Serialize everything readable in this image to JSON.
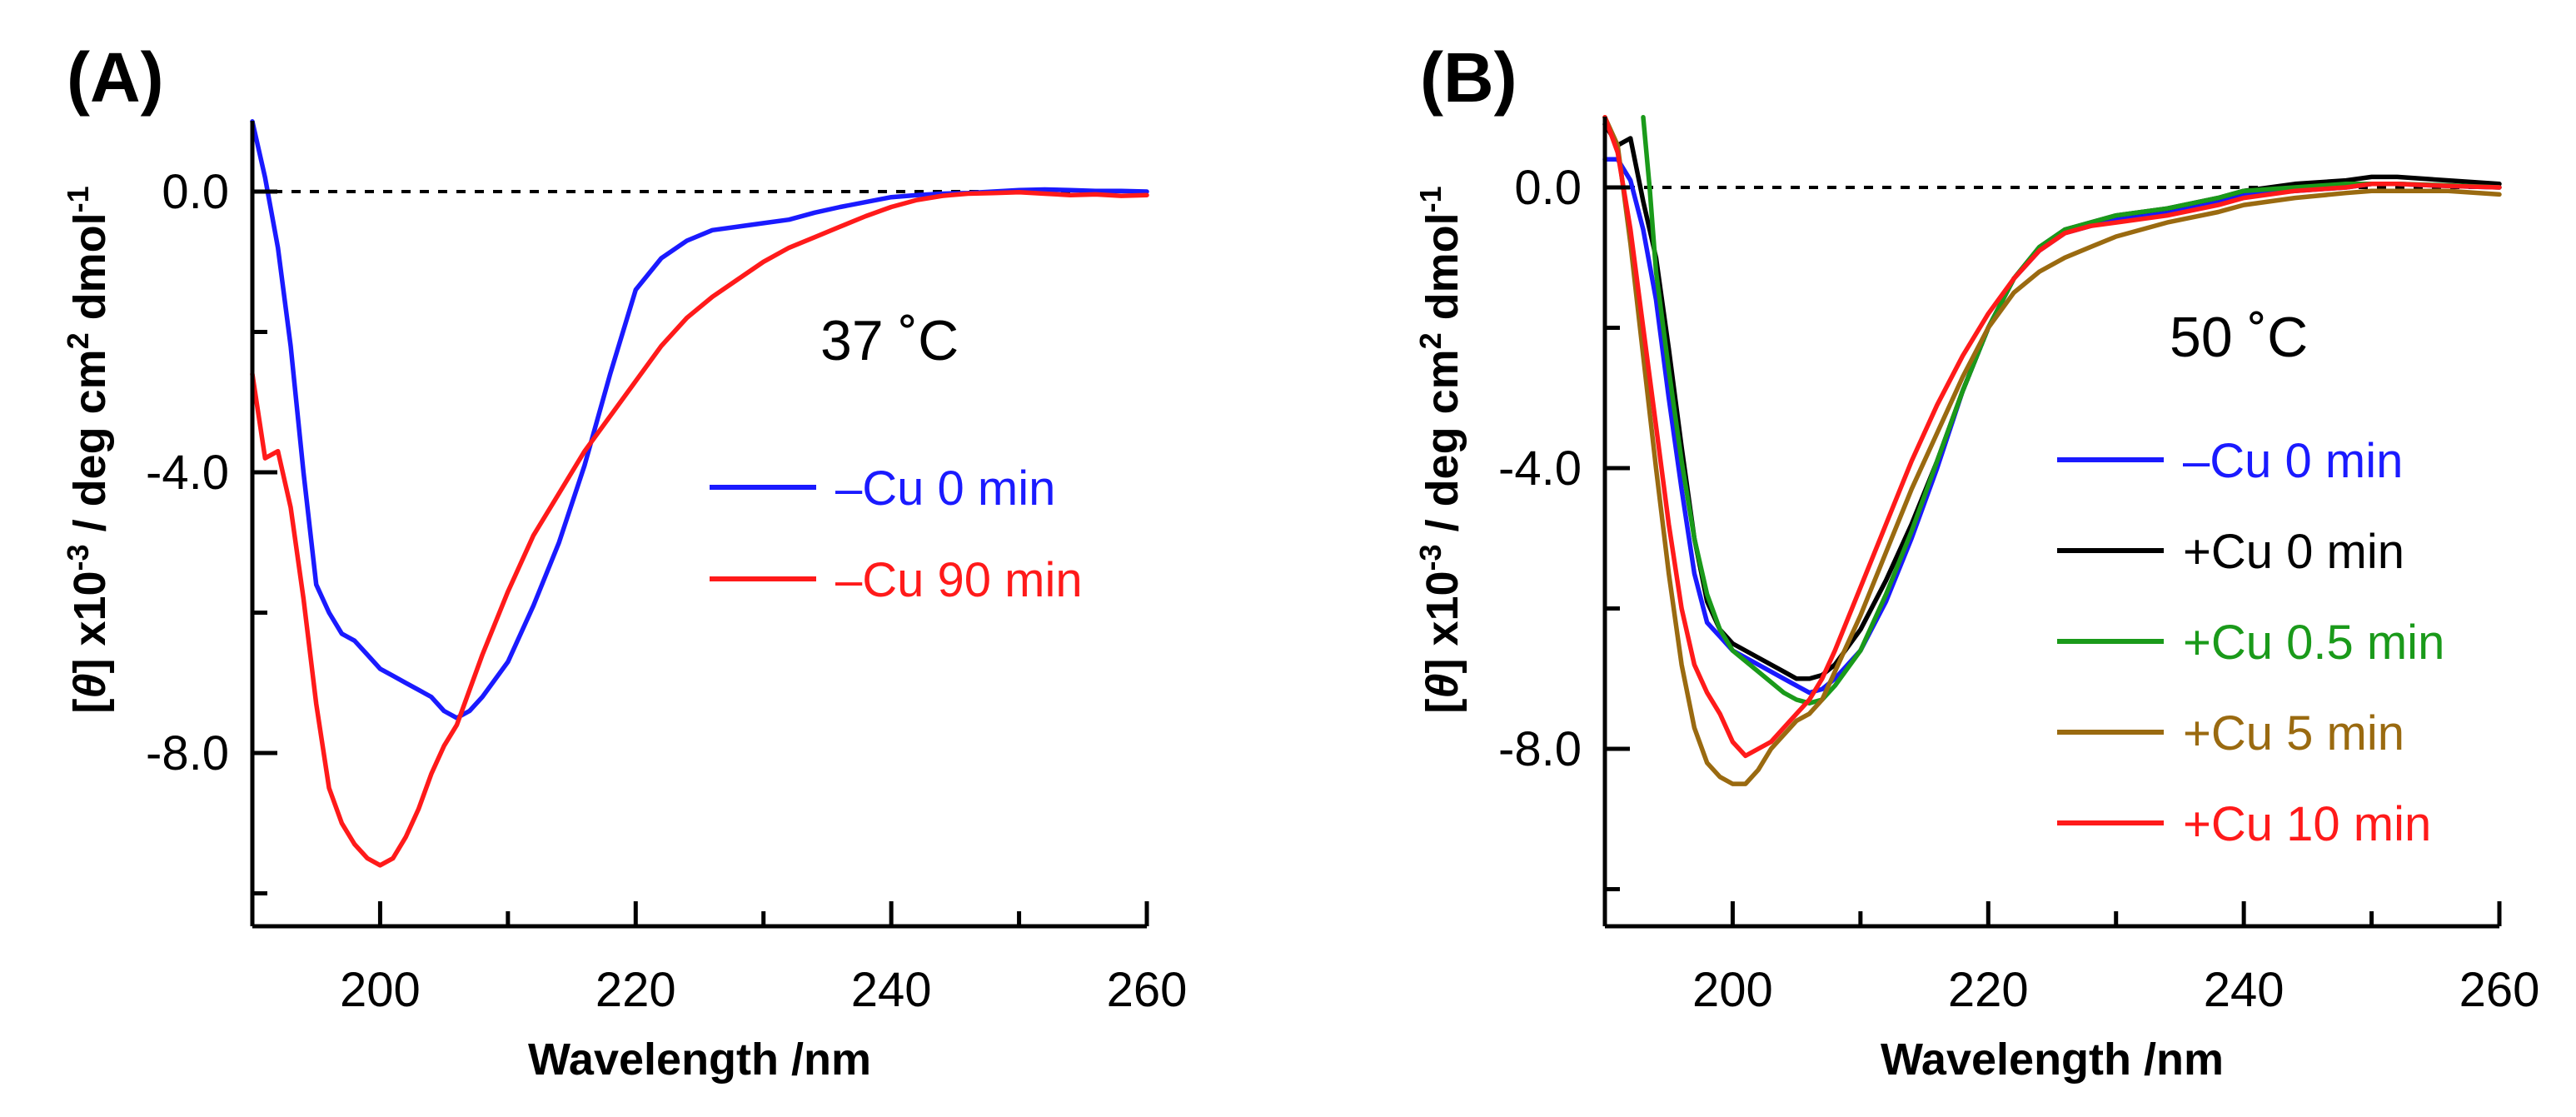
{
  "chart_data": [
    {
      "panel_label": "(A)",
      "type": "line",
      "annotation": "37 ˚C",
      "xlabel": "Wavelength /nm",
      "ylabel_parts": [
        "[",
        "θ",
        "] x10",
        "-3",
        " / deg cm",
        "2",
        " dmol",
        "-1"
      ],
      "xlim": [
        190,
        260
      ],
      "ylim": [
        -10.6,
        1.0
      ],
      "xticks": [
        200,
        220,
        240,
        260
      ],
      "xtick_labels": [
        "200",
        "220",
        "240",
        "260"
      ],
      "yticks": [
        0.0,
        -4.0,
        -8.0
      ],
      "ytick_labels": [
        "0.0",
        "-4.0",
        "-8.0"
      ],
      "reference_line_y": 0,
      "series": [
        {
          "name": "–Cu 0 min",
          "color": "#1a1aff",
          "x": [
            190,
            191,
            192,
            193,
            194,
            195,
            196,
            197,
            198,
            199,
            200,
            201,
            202,
            203,
            204,
            205,
            206,
            207,
            208,
            210,
            212,
            214,
            216,
            218,
            220,
            222,
            224,
            226,
            228,
            230,
            232,
            234,
            236,
            238,
            240,
            242,
            244,
            246,
            248,
            250,
            252,
            254,
            256,
            258,
            260
          ],
          "y": [
            1.0,
            0.2,
            -0.8,
            -2.2,
            -4.0,
            -5.6,
            -6.0,
            -6.3,
            -6.4,
            -6.6,
            -6.8,
            -6.9,
            -7.0,
            -7.1,
            -7.2,
            -7.4,
            -7.5,
            -7.4,
            -7.2,
            -6.7,
            -5.9,
            -5.0,
            -3.9,
            -2.6,
            -1.4,
            -0.95,
            -0.7,
            -0.55,
            -0.5,
            -0.45,
            -0.4,
            -0.3,
            -0.22,
            -0.15,
            -0.08,
            -0.05,
            -0.03,
            -0.02,
            0.0,
            0.02,
            0.03,
            0.02,
            0.01,
            0.01,
            0.0
          ]
        },
        {
          "name": "–Cu 90 min",
          "color": "#ff1a1a",
          "x": [
            190,
            191,
            192,
            193,
            194,
            195,
            196,
            197,
            198,
            199,
            200,
            201,
            202,
            203,
            204,
            205,
            206,
            208,
            210,
            212,
            214,
            216,
            218,
            220,
            222,
            224,
            226,
            228,
            230,
            232,
            234,
            236,
            238,
            240,
            242,
            244,
            246,
            248,
            250,
            252,
            254,
            256,
            258,
            260
          ],
          "y": [
            -2.6,
            -3.8,
            -3.7,
            -4.5,
            -5.8,
            -7.3,
            -8.5,
            -9.0,
            -9.3,
            -9.5,
            -9.6,
            -9.5,
            -9.2,
            -8.8,
            -8.3,
            -7.9,
            -7.6,
            -6.6,
            -5.7,
            -4.9,
            -4.3,
            -3.7,
            -3.2,
            -2.7,
            -2.2,
            -1.8,
            -1.5,
            -1.25,
            -1.0,
            -0.8,
            -0.65,
            -0.5,
            -0.35,
            -0.22,
            -0.12,
            -0.06,
            -0.03,
            -0.02,
            -0.01,
            -0.03,
            -0.05,
            -0.04,
            -0.06,
            -0.05
          ]
        }
      ]
    },
    {
      "panel_label": "(B)",
      "type": "line",
      "annotation": "50 ˚C",
      "xlabel": "Wavelength /nm",
      "ylabel_parts": [
        "[",
        "θ",
        "] x10",
        "-3",
        " / deg cm",
        "2",
        " dmol",
        "-1"
      ],
      "xlim": [
        190,
        260
      ],
      "ylim": [
        -10.6,
        1.0
      ],
      "xticks": [
        200,
        220,
        240,
        260
      ],
      "xtick_labels": [
        "200",
        "220",
        "240",
        "260"
      ],
      "yticks": [
        0.0,
        -4.0,
        -8.0
      ],
      "ytick_labels": [
        "0.0",
        "-4.0",
        "-8.0"
      ],
      "reference_line_y": 0,
      "series": [
        {
          "name": "–Cu 0 min",
          "color": "#1a1aff",
          "x": [
            190,
            191,
            192,
            193,
            194,
            195,
            196,
            197,
            198,
            199,
            200,
            202,
            204,
            205,
            206,
            207,
            208,
            210,
            212,
            214,
            216,
            218,
            220,
            222,
            224,
            226,
            228,
            230,
            234,
            238,
            240,
            244,
            248,
            250,
            252,
            256,
            260
          ],
          "y": [
            0.4,
            0.4,
            0.1,
            -0.6,
            -1.6,
            -3.0,
            -4.3,
            -5.5,
            -6.2,
            -6.4,
            -6.6,
            -6.8,
            -7.0,
            -7.1,
            -7.2,
            -7.15,
            -7.0,
            -6.6,
            -5.9,
            -5.0,
            -4.0,
            -2.9,
            -2.0,
            -1.3,
            -0.9,
            -0.65,
            -0.55,
            -0.45,
            -0.35,
            -0.2,
            -0.1,
            -0.05,
            0.0,
            0.05,
            0.05,
            0.02,
            0.0
          ]
        },
        {
          "name": "+Cu 0 min",
          "color": "#000000",
          "x": [
            190,
            191,
            192,
            193,
            194,
            195,
            196,
            197,
            198,
            199,
            200,
            202,
            204,
            205,
            206,
            207,
            208,
            210,
            212,
            214,
            216,
            218,
            220,
            222,
            224,
            226,
            228,
            230,
            234,
            238,
            240,
            244,
            248,
            250,
            252,
            256,
            260
          ],
          "y": [
            0.9,
            0.6,
            0.7,
            -0.2,
            -1.0,
            -2.3,
            -3.7,
            -5.0,
            -5.9,
            -6.3,
            -6.5,
            -6.7,
            -6.9,
            -7.0,
            -7.0,
            -6.95,
            -6.8,
            -6.3,
            -5.6,
            -4.8,
            -3.9,
            -2.9,
            -2.0,
            -1.3,
            -0.85,
            -0.6,
            -0.5,
            -0.4,
            -0.3,
            -0.15,
            -0.05,
            0.05,
            0.1,
            0.15,
            0.15,
            0.1,
            0.05
          ]
        },
        {
          "name": "+Cu 0.5 min",
          "color": "#1a9a1a",
          "x": [
            193,
            193.5,
            194,
            195,
            196,
            197,
            198,
            199,
            200,
            202,
            204,
            205,
            206,
            207,
            208,
            210,
            212,
            214,
            216,
            218,
            220,
            222,
            224,
            226,
            228,
            230,
            234,
            238,
            240,
            244,
            248,
            250,
            252,
            256,
            260
          ],
          "y": [
            1.0,
            0.0,
            -1.2,
            -2.6,
            -3.9,
            -5.0,
            -5.8,
            -6.3,
            -6.6,
            -6.9,
            -7.2,
            -7.3,
            -7.35,
            -7.3,
            -7.1,
            -6.6,
            -5.8,
            -4.9,
            -3.9,
            -2.9,
            -2.0,
            -1.3,
            -0.85,
            -0.6,
            -0.5,
            -0.4,
            -0.3,
            -0.15,
            -0.05,
            0.0,
            0.05,
            0.05,
            0.05,
            0.03,
            0.0
          ]
        },
        {
          "name": "+Cu 5 min",
          "color": "#9a6a10",
          "x": [
            190,
            191,
            192,
            193,
            194,
            195,
            196,
            197,
            198,
            199,
            200,
            201,
            202,
            203,
            204,
            205,
            206,
            207,
            208,
            210,
            212,
            214,
            216,
            218,
            220,
            222,
            224,
            226,
            228,
            230,
            234,
            238,
            240,
            244,
            248,
            250,
            252,
            256,
            260
          ],
          "y": [
            1.0,
            0.6,
            -0.8,
            -2.4,
            -4.0,
            -5.5,
            -6.8,
            -7.7,
            -8.2,
            -8.4,
            -8.5,
            -8.5,
            -8.3,
            -8.0,
            -7.8,
            -7.6,
            -7.5,
            -7.3,
            -6.9,
            -6.1,
            -5.2,
            -4.3,
            -3.5,
            -2.7,
            -2.0,
            -1.5,
            -1.2,
            -1.0,
            -0.85,
            -0.7,
            -0.5,
            -0.35,
            -0.25,
            -0.15,
            -0.08,
            -0.05,
            -0.05,
            -0.05,
            -0.1
          ]
        },
        {
          "name": "+Cu 10 min",
          "color": "#ff1a1a",
          "x": [
            190,
            191,
            192,
            193,
            194,
            195,
            196,
            197,
            198,
            199,
            200,
            201,
            202,
            203,
            204,
            205,
            206,
            207,
            208,
            210,
            212,
            214,
            216,
            218,
            220,
            222,
            224,
            226,
            228,
            230,
            234,
            238,
            240,
            244,
            248,
            250,
            252,
            256,
            260
          ],
          "y": [
            1.0,
            0.5,
            -0.6,
            -2.0,
            -3.4,
            -4.8,
            -6.0,
            -6.8,
            -7.2,
            -7.5,
            -7.9,
            -8.1,
            -8.0,
            -7.9,
            -7.7,
            -7.5,
            -7.3,
            -7.0,
            -6.6,
            -5.7,
            -4.8,
            -3.9,
            -3.1,
            -2.4,
            -1.8,
            -1.3,
            -0.9,
            -0.65,
            -0.55,
            -0.5,
            -0.4,
            -0.25,
            -0.15,
            -0.05,
            0.0,
            0.05,
            0.05,
            0.02,
            0.0
          ]
        }
      ]
    }
  ]
}
